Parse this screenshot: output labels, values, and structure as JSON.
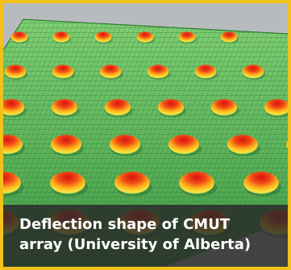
{
  "caption": {
    "line1": "Deflection shape of CMUT",
    "line2": "array (University of Alberta)"
  },
  "colors": {
    "border": "#f2c21a",
    "membrane_green": "#5cb85a",
    "bump_red": "#e8321e",
    "bump_yellow": "#ffd21a",
    "caption_background": "#333333"
  },
  "scene": {
    "description_icon": "cmut-membrane-array-render",
    "rows": 6,
    "columns": 6
  }
}
